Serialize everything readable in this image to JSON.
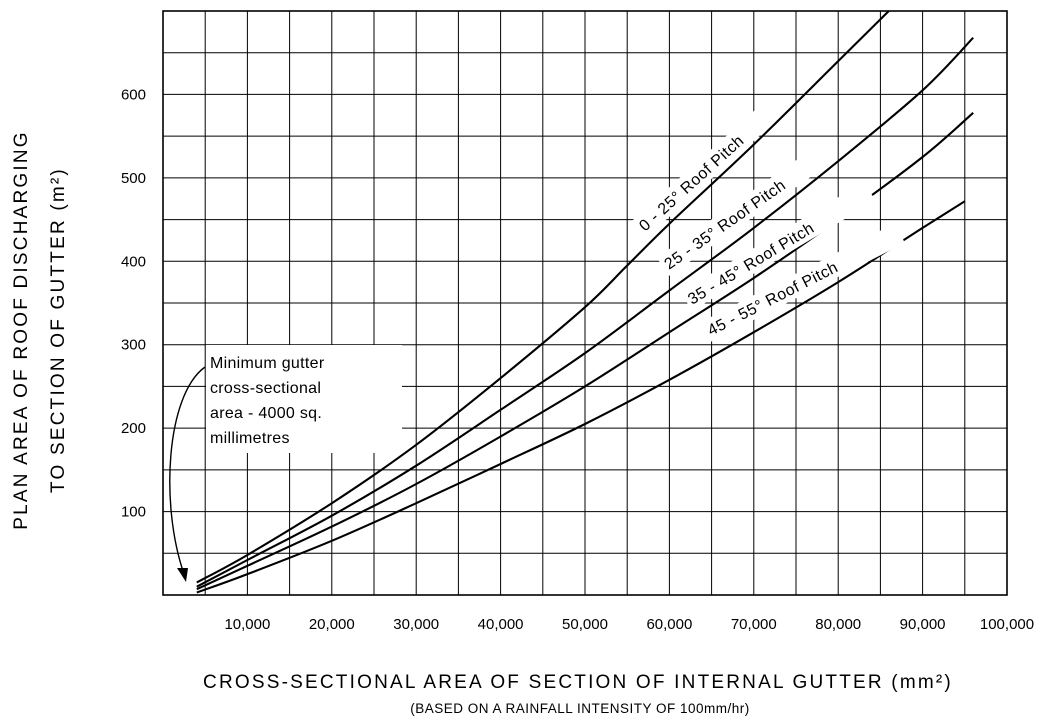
{
  "chart_data": {
    "type": "line",
    "xlabel": "CROSS-SECTIONAL AREA OF SECTION OF INTERNAL GUTTER (mm²)",
    "xlabel_note": "(BASED ON A RAINFALL INTENSITY OF 100mm/hr)",
    "ylabel_line1": "PLAN AREA OF ROOF DISCHARGING",
    "ylabel_line2": "TO SECTION OF GUTTER (m²)",
    "xlim": [
      0,
      100000
    ],
    "ylim": [
      0,
      700
    ],
    "grid": true,
    "x_ticks": [
      10000,
      20000,
      30000,
      40000,
      50000,
      60000,
      70000,
      80000,
      90000,
      100000
    ],
    "x_tick_labels": [
      "10,000",
      "20,000",
      "30,000",
      "40,000",
      "50,000",
      "60,000",
      "70,000",
      "80,000",
      "90,000",
      "100,000"
    ],
    "y_ticks": [
      100,
      200,
      300,
      400,
      500,
      600
    ],
    "y_tick_labels": [
      "100",
      "200",
      "300",
      "400",
      "500",
      "600"
    ],
    "series": [
      {
        "name": "0 - 25° Roof Pitch",
        "x": [
          4000,
          10000,
          20000,
          30000,
          40000,
          50000,
          55000,
          60000,
          70000,
          80000,
          86000
        ],
        "y": [
          15,
          48,
          110,
          180,
          260,
          345,
          395,
          445,
          540,
          640,
          700
        ]
      },
      {
        "name": "25 - 35° Roof Pitch",
        "x": [
          4000,
          10000,
          20000,
          30000,
          40000,
          50000,
          60000,
          70000,
          80000,
          90000,
          96000
        ],
        "y": [
          10,
          42,
          95,
          155,
          222,
          290,
          365,
          440,
          520,
          605,
          668
        ]
      },
      {
        "name": "35 - 45° Roof Pitch",
        "x": [
          4000,
          10000,
          20000,
          30000,
          40000,
          50000,
          60000,
          70000,
          80000,
          90000,
          96000
        ],
        "y": [
          7,
          35,
          82,
          133,
          190,
          250,
          315,
          380,
          450,
          525,
          578
        ]
      },
      {
        "name": "45 - 55° Roof Pitch",
        "x": [
          4000,
          10000,
          20000,
          30000,
          40000,
          50000,
          60000,
          70000,
          80000,
          90000,
          95000
        ],
        "y": [
          3,
          25,
          65,
          110,
          157,
          205,
          258,
          315,
          375,
          440,
          472
        ]
      }
    ],
    "annotation": {
      "lines": [
        "Minimum gutter",
        "cross-sectional",
        "area - 4000 sq.",
        "millimetres"
      ],
      "points_to_x": 4000
    }
  }
}
